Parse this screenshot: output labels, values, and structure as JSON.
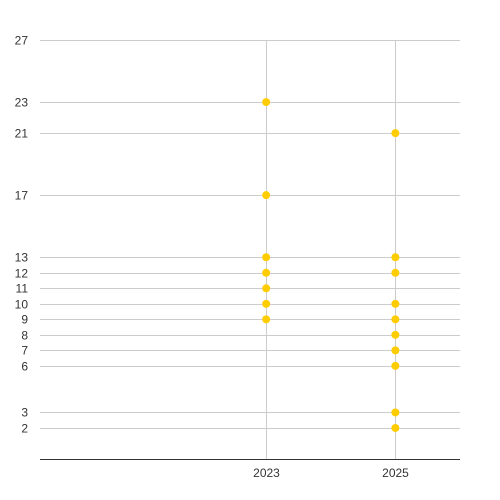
{
  "chart_data": {
    "type": "scatter",
    "x_categories": [
      "2023",
      "2025"
    ],
    "y_ticks": [
      2,
      3,
      6,
      7,
      8,
      9,
      10,
      11,
      12,
      13,
      17,
      21,
      23,
      27
    ],
    "series": [
      {
        "color": "#ffcc00",
        "points": [
          {
            "x": "2023",
            "y": 23
          },
          {
            "x": "2023",
            "y": 17
          },
          {
            "x": "2023",
            "y": 13
          },
          {
            "x": "2023",
            "y": 12
          },
          {
            "x": "2023",
            "y": 11
          },
          {
            "x": "2023",
            "y": 10
          },
          {
            "x": "2023",
            "y": 9
          },
          {
            "x": "2025",
            "y": 21
          },
          {
            "x": "2025",
            "y": 13
          },
          {
            "x": "2025",
            "y": 12
          },
          {
            "x": "2025",
            "y": 10
          },
          {
            "x": "2025",
            "y": 9
          },
          {
            "x": "2025",
            "y": 8
          },
          {
            "x": "2025",
            "y": 7
          },
          {
            "x": "2025",
            "y": 6
          },
          {
            "x": "2025",
            "y": 3
          },
          {
            "x": "2025",
            "y": 2
          }
        ]
      }
    ],
    "ylim": [
      0,
      27
    ],
    "xlim": [
      "2019.5",
      "2026"
    ],
    "grid": true,
    "legend": "none"
  }
}
